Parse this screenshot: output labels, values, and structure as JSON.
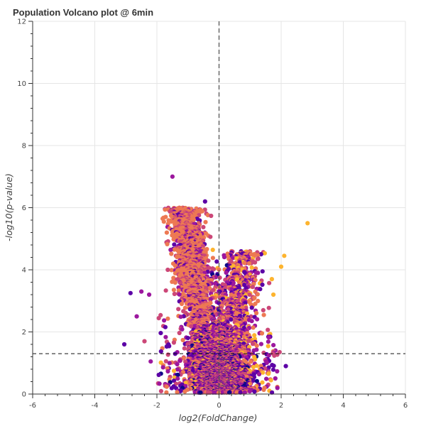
{
  "chart_data": {
    "type": "scatter",
    "title": "Population Volcano plot @ 6min",
    "xlabel": "log2(FoldChange)",
    "ylabel": "-log10(p-value)",
    "xlim": [
      -6,
      6
    ],
    "ylim": [
      0,
      12
    ],
    "x_ticks": [
      "-6",
      "-4",
      "-2",
      "0",
      "2",
      "4",
      "6"
    ],
    "y_ticks": [
      "0",
      "2",
      "4",
      "6",
      "8",
      "10",
      "12"
    ],
    "grid": true,
    "legend": "none",
    "reference_lines": [
      {
        "orientation": "vertical",
        "x": 0,
        "style": "dashed"
      },
      {
        "orientation": "horizontal",
        "y": 1.3,
        "style": "dashed"
      }
    ],
    "colormap": "plasma",
    "colors": [
      "#0d0887",
      "#5c01a6",
      "#9c179e",
      "#cc4778",
      "#ed7953",
      "#fdb42f"
    ],
    "point_count_approx": 6000,
    "highlighted_points": [
      {
        "x": 2.85,
        "y": 5.5,
        "color": "#fdb42f"
      },
      {
        "x": 2.1,
        "y": 4.45,
        "color": "#fdb42f"
      },
      {
        "x": 2.0,
        "y": 4.1,
        "color": "#fdb42f"
      },
      {
        "x": 1.7,
        "y": 3.7,
        "color": "#fdb42f"
      },
      {
        "x": 1.75,
        "y": 3.2,
        "color": "#fdb42f"
      },
      {
        "x": 1.25,
        "y": 3.9,
        "color": "#9c179e"
      },
      {
        "x": 1.4,
        "y": 3.95,
        "color": "#5c01a6"
      },
      {
        "x": 2.15,
        "y": 0.9,
        "color": "#5c01a6"
      },
      {
        "x": 1.95,
        "y": 1.35,
        "color": "#cc4778"
      },
      {
        "x": -1.5,
        "y": 7.0,
        "color": "#9c179e"
      },
      {
        "x": -0.45,
        "y": 6.2,
        "color": "#5c01a6"
      },
      {
        "x": -1.65,
        "y": 4.0,
        "color": "#cc4778"
      },
      {
        "x": -2.5,
        "y": 3.3,
        "color": "#9c179e"
      },
      {
        "x": -2.25,
        "y": 3.2,
        "color": "#9c179e"
      },
      {
        "x": -2.85,
        "y": 3.25,
        "color": "#5c01a6"
      },
      {
        "x": -2.65,
        "y": 2.5,
        "color": "#9c179e"
      },
      {
        "x": -3.05,
        "y": 1.6,
        "color": "#5c01a6"
      },
      {
        "x": -2.2,
        "y": 1.05,
        "color": "#9c179e"
      },
      {
        "x": -2.4,
        "y": 1.7,
        "color": "#cc4778"
      }
    ]
  }
}
